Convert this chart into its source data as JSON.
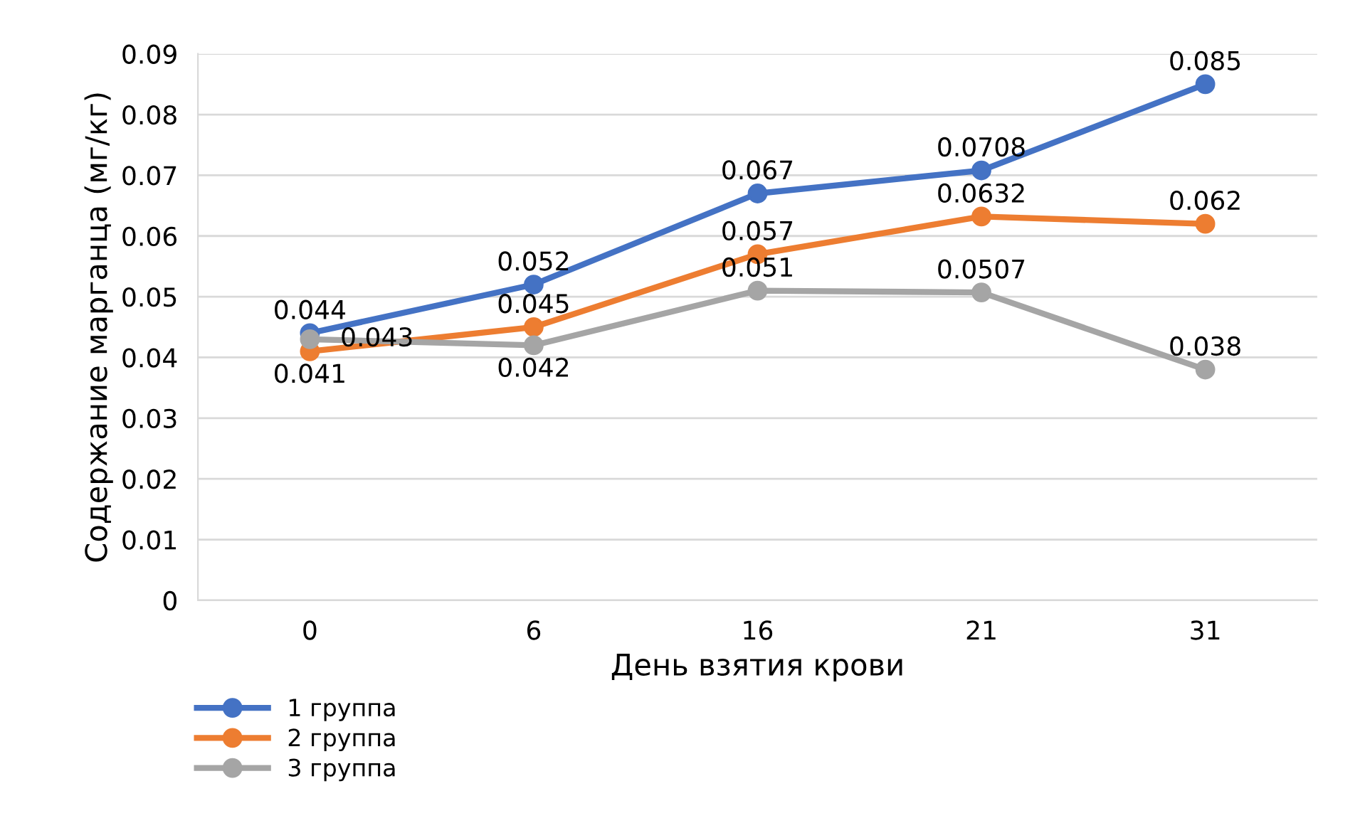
{
  "chart_data": {
    "type": "line",
    "xlabel": "День взятия крови",
    "ylabel": "Содержание марганца (мг/кг)",
    "categories": [
      "0",
      "6",
      "16",
      "21",
      "31"
    ],
    "series": [
      {
        "name": "1 группа",
        "color": "#4472c4",
        "values": [
          0.044,
          0.052,
          0.067,
          0.0708,
          0.085
        ]
      },
      {
        "name": "2 группа",
        "color": "#ed7d31",
        "values": [
          0.041,
          0.045,
          0.057,
          0.0632,
          0.062
        ]
      },
      {
        "name": "3 группа",
        "color": "#a5a5a5",
        "values": [
          0.043,
          0.042,
          0.051,
          0.0507,
          0.038
        ]
      }
    ],
    "ylim": [
      0,
      0.09
    ],
    "yticks": [
      0,
      0.01,
      0.02,
      0.03,
      0.04,
      0.05,
      0.06,
      0.07,
      0.08,
      0.09
    ],
    "grid": "y",
    "legend": "bottom left",
    "marker": "circle",
    "line_style": "solid",
    "data_labels": true
  }
}
